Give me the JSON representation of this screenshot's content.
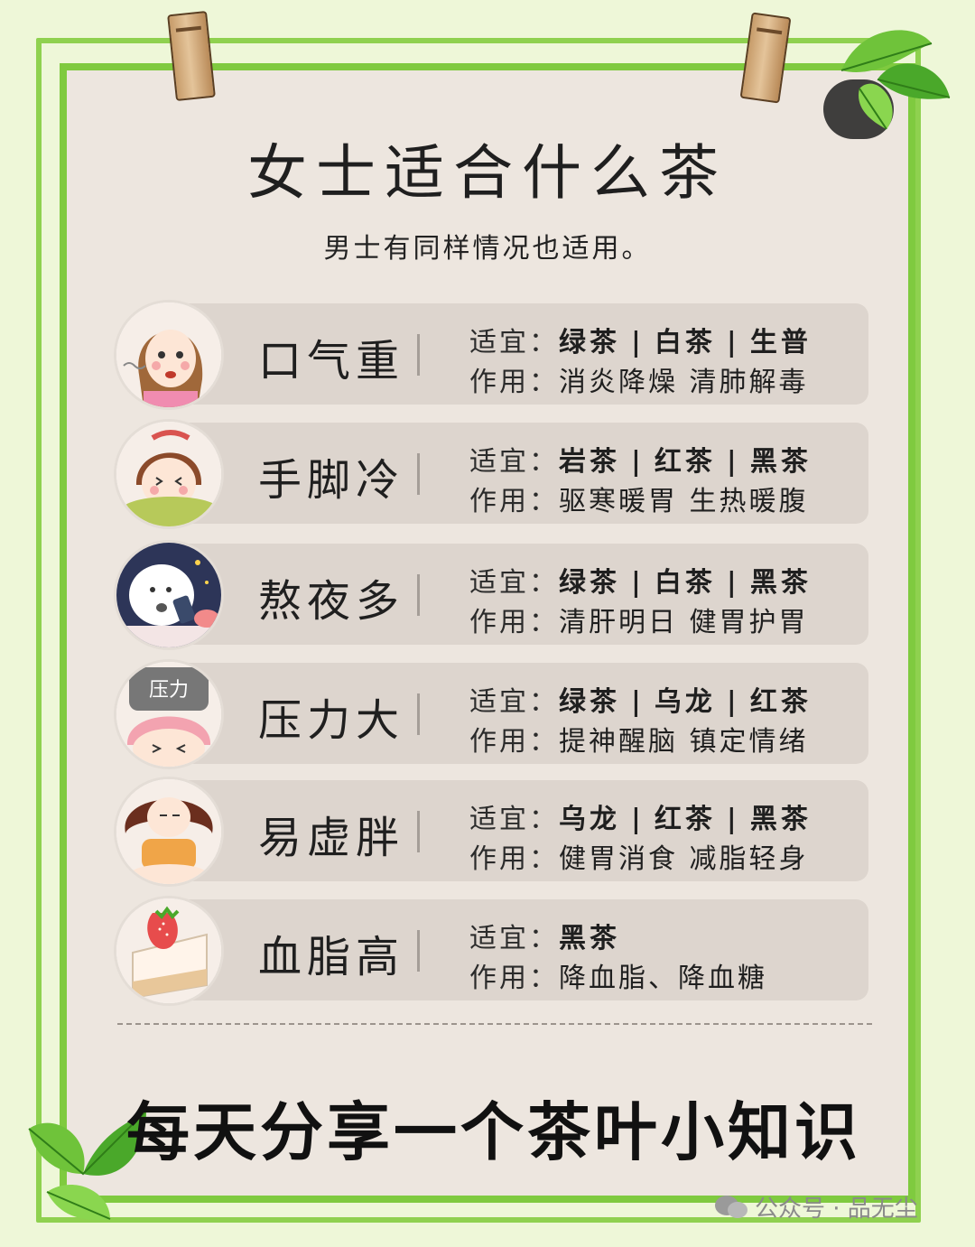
{
  "header": {
    "title": "女士适合什么茶",
    "subtitle": "男士有同样情况也适用。"
  },
  "labels": {
    "suit": "适宜：",
    "effect": "作用："
  },
  "rows": [
    {
      "condition": "口气重",
      "teas": [
        "绿茶",
        "白茶",
        "生普"
      ],
      "effect": "消炎降燥 清肺解毒",
      "avatar": "woman-bad-breath-avatar"
    },
    {
      "condition": "手脚冷",
      "teas": [
        "岩茶",
        "红茶",
        "黑茶"
      ],
      "effect": "驱寒暖胃 生热暖腹",
      "avatar": "woman-cold-avatar"
    },
    {
      "condition": "熬夜多",
      "teas": [
        "绿茶",
        "白茶",
        "黑茶"
      ],
      "effect": "清肝明日 健胃护胃",
      "avatar": "night-phone-avatar"
    },
    {
      "condition": "压力大",
      "teas": [
        "绿茶",
        "乌龙",
        "红茶"
      ],
      "effect": "提神醒脑 镇定情绪",
      "avatar": "pressure-avatar",
      "avatar_text": "压力"
    },
    {
      "condition": "易虚胖",
      "teas": [
        "乌龙",
        "红茶",
        "黑茶"
      ],
      "effect": "健胃消食 减脂轻身",
      "avatar": "chubby-woman-avatar"
    },
    {
      "condition": "血脂高",
      "teas": [
        "黑茶"
      ],
      "effect": "降血脂、降血糖",
      "avatar": "cake-avatar"
    }
  ],
  "footer": {
    "text": "每天分享一个茶叶小知识"
  },
  "watermark": {
    "text": "公众号 · 品无尘"
  },
  "colors": {
    "page_bg": "#eef7d8",
    "frame_green": "#7fca3f",
    "paper": "#ede6df",
    "row_band": "#ddd5ce"
  }
}
